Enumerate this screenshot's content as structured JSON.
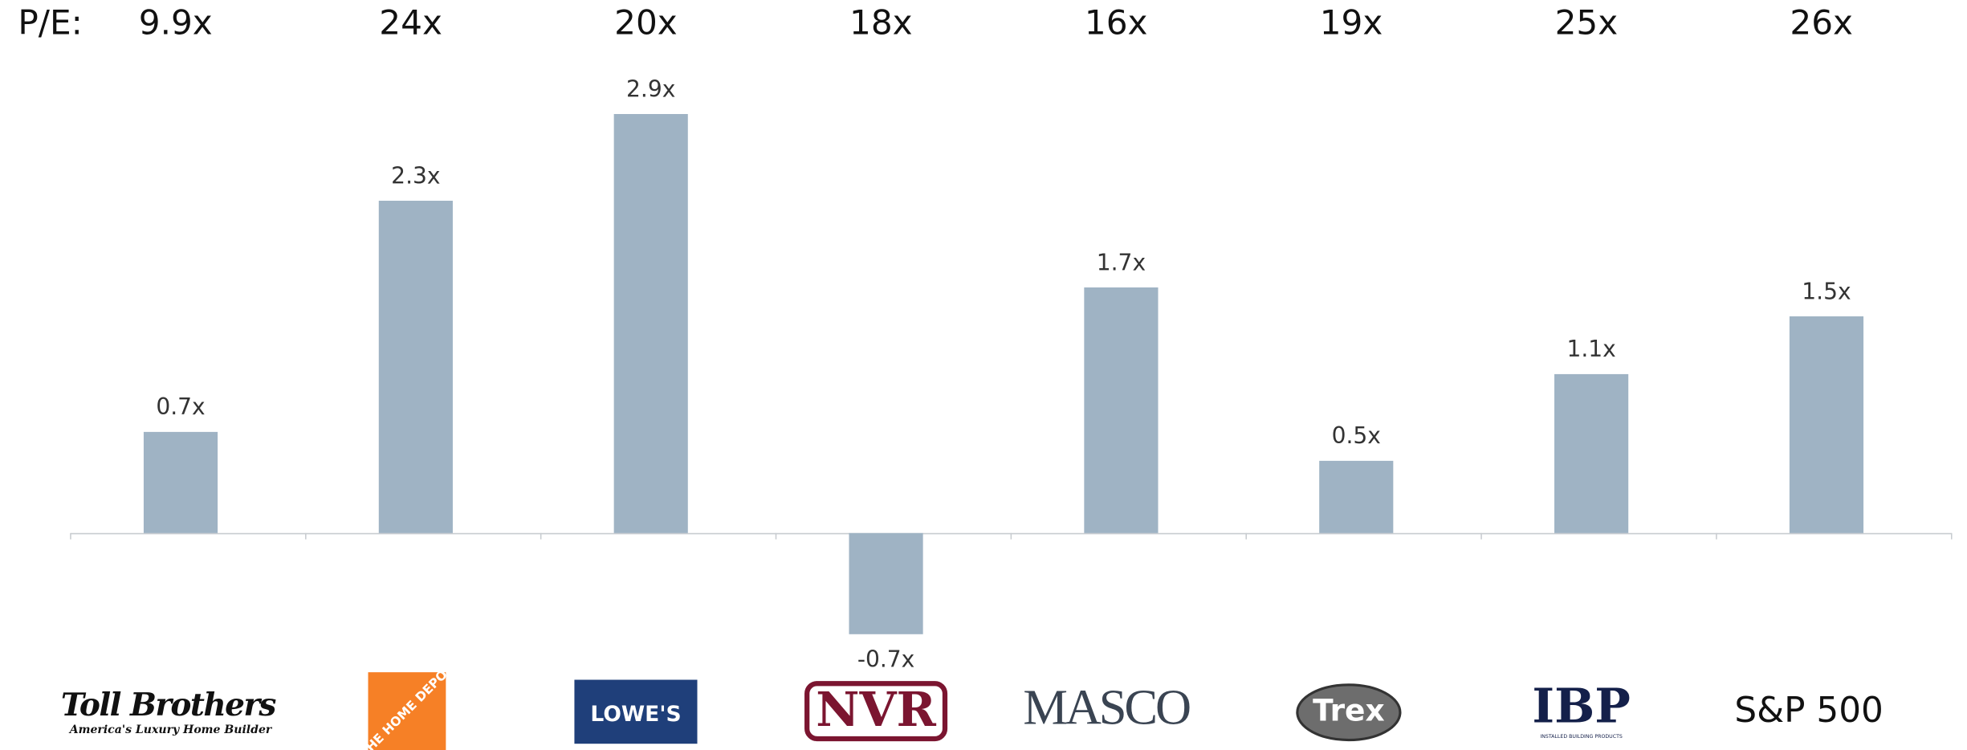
{
  "chart_data": {
    "type": "bar",
    "pe_label": "P/E:",
    "pe_values": [
      9.9,
      24,
      20,
      18,
      16,
      19,
      25,
      26
    ],
    "pe_value_labels": [
      "9.9x",
      "24x",
      "20x",
      "18x",
      "16x",
      "19x",
      "25x",
      "26x"
    ],
    "categories": [
      "Toll Brothers",
      "THE HOME DEPOT",
      "LOWE'S",
      "NVR",
      "MASCO",
      "Trex",
      "IBP",
      "S&P 500"
    ],
    "taglines": [
      "America's Luxury Home Builder",
      null,
      null,
      null,
      null,
      null,
      "INSTALLED BUILDING PRODUCTS",
      null
    ],
    "values": [
      0.7,
      2.3,
      2.9,
      -0.7,
      1.7,
      0.5,
      1.1,
      1.5
    ],
    "value_labels": [
      "0.7x",
      "2.3x",
      "2.9x",
      "-0.7x",
      "1.7x",
      "0.5x",
      "1.1x",
      "1.5x"
    ],
    "color": "#9fb3c4",
    "ylim": [
      -0.8,
      3.0
    ]
  }
}
